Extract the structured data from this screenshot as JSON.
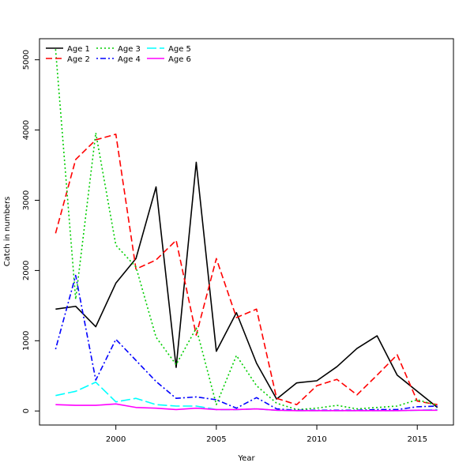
{
  "chart_data": {
    "type": "line",
    "title": "",
    "xlabel": "Year",
    "ylabel": "Catch in numbers",
    "xlim": [
      1996.2,
      2016.8
    ],
    "ylim": [
      -200,
      5300
    ],
    "xticks": [
      2000,
      2005,
      2010,
      2015
    ],
    "yticks": [
      0,
      1000,
      2000,
      3000,
      4000,
      5000
    ],
    "x": [
      1997,
      1998,
      1999,
      2000,
      2001,
      2002,
      2003,
      2004,
      2005,
      2006,
      2007,
      2008,
      2009,
      2010,
      2011,
      2012,
      2013,
      2014,
      2015,
      2016
    ],
    "series": [
      {
        "name": "Age 1",
        "color": "#000000",
        "dash": "solid",
        "values": [
          1450,
          1490,
          1200,
          1820,
          2170,
          3190,
          620,
          3540,
          850,
          1400,
          680,
          170,
          400,
          430,
          630,
          890,
          1070,
          510,
          280,
          50
        ]
      },
      {
        "name": "Age 2",
        "color": "#ff0000",
        "dash": "dashed",
        "values": [
          2530,
          3580,
          3860,
          3940,
          2020,
          2150,
          2430,
          1080,
          2170,
          1330,
          1450,
          180,
          90,
          360,
          450,
          230,
          510,
          800,
          140,
          90
        ]
      },
      {
        "name": "Age 3",
        "color": "#00cd00",
        "dash": "dotted",
        "values": [
          5150,
          1590,
          3960,
          2360,
          2050,
          1050,
          660,
          1180,
          90,
          790,
          360,
          110,
          20,
          40,
          80,
          30,
          50,
          70,
          160,
          80
        ]
      },
      {
        "name": "Age 4",
        "color": "#0000ff",
        "dash": "dotdash",
        "values": [
          880,
          1930,
          440,
          1020,
          720,
          420,
          180,
          200,
          160,
          40,
          190,
          30,
          10,
          10,
          10,
          10,
          20,
          20,
          60,
          70
        ]
      },
      {
        "name": "Age 5",
        "color": "#00ffff",
        "dash": "longdash",
        "values": [
          220,
          280,
          410,
          130,
          180,
          90,
          70,
          70,
          20,
          20,
          30,
          10,
          5,
          5,
          5,
          5,
          5,
          5,
          10,
          20
        ]
      },
      {
        "name": "Age 6",
        "color": "#ff00ff",
        "dash": "solid",
        "values": [
          90,
          80,
          80,
          100,
          50,
          40,
          20,
          40,
          20,
          20,
          30,
          10,
          5,
          5,
          5,
          5,
          5,
          5,
          10,
          10
        ]
      }
    ],
    "legend_position": "top-left",
    "grid": false
  }
}
